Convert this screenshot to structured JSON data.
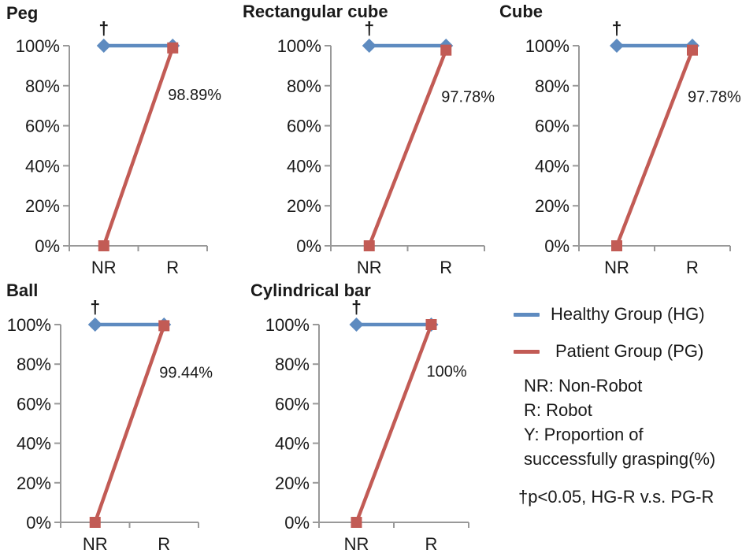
{
  "figure": {
    "colors": {
      "hg": "#5E8BC0",
      "pg": "#C25B55",
      "axis": "#999999",
      "text": "#1A1A1A"
    },
    "legend": {
      "hg_label": "Healthy Group (HG)",
      "pg_label": "Patient Group (PG)",
      "note_nr": "NR: Non-Robot",
      "note_r": "R: Robot",
      "note_y1": "Y: Proportion of",
      "note_y2": "successfully grasping(%)",
      "significance": "†p<0.05, HG-R v.s. PG-R"
    }
  },
  "chart_data": [
    {
      "type": "line",
      "title": "Peg",
      "categories": [
        "NR",
        "R"
      ],
      "yticks": [
        "0%",
        "20%",
        "40%",
        "60%",
        "80%",
        "100%"
      ],
      "ylim": [
        0,
        100
      ],
      "grid": false,
      "legend_position": "outside-right",
      "series": [
        {
          "name": "Healthy Group (HG)",
          "color_key": "hg",
          "marker": "diamond",
          "values": [
            100,
            100
          ]
        },
        {
          "name": "Patient Group (PG)",
          "color_key": "pg",
          "marker": "square",
          "values": [
            0,
            98.89
          ]
        }
      ],
      "annotation": "†",
      "data_label": "98.89%"
    },
    {
      "type": "line",
      "title": "Rectangular cube",
      "categories": [
        "NR",
        "R"
      ],
      "yticks": [
        "0%",
        "20%",
        "40%",
        "60%",
        "80%",
        "100%"
      ],
      "ylim": [
        0,
        100
      ],
      "grid": false,
      "legend_position": "outside-right",
      "series": [
        {
          "name": "Healthy Group (HG)",
          "color_key": "hg",
          "marker": "diamond",
          "values": [
            100,
            100
          ]
        },
        {
          "name": "Patient Group (PG)",
          "color_key": "pg",
          "marker": "square",
          "values": [
            0,
            97.78
          ]
        }
      ],
      "annotation": "†",
      "data_label": "97.78%"
    },
    {
      "type": "line",
      "title": "Cube",
      "categories": [
        "NR",
        "R"
      ],
      "yticks": [
        "0%",
        "20%",
        "40%",
        "60%",
        "80%",
        "100%"
      ],
      "ylim": [
        0,
        100
      ],
      "grid": false,
      "legend_position": "outside-right",
      "series": [
        {
          "name": "Healthy Group (HG)",
          "color_key": "hg",
          "marker": "diamond",
          "values": [
            100,
            100
          ]
        },
        {
          "name": "Patient Group (PG)",
          "color_key": "pg",
          "marker": "square",
          "values": [
            0,
            97.78
          ]
        }
      ],
      "annotation": "†",
      "data_label": "97.78%"
    },
    {
      "type": "line",
      "title": "Ball",
      "categories": [
        "NR",
        "R"
      ],
      "yticks": [
        "0%",
        "20%",
        "40%",
        "60%",
        "80%",
        "100%"
      ],
      "ylim": [
        0,
        100
      ],
      "grid": false,
      "legend_position": "outside-right",
      "series": [
        {
          "name": "Healthy Group (HG)",
          "color_key": "hg",
          "marker": "diamond",
          "values": [
            100,
            100
          ]
        },
        {
          "name": "Patient Group (PG)",
          "color_key": "pg",
          "marker": "square",
          "values": [
            0,
            99.44
          ]
        }
      ],
      "annotation": "†",
      "data_label": "99.44%"
    },
    {
      "type": "line",
      "title": "Cylindrical bar",
      "categories": [
        "NR",
        "R"
      ],
      "yticks": [
        "0%",
        "20%",
        "40%",
        "60%",
        "80%",
        "100%"
      ],
      "ylim": [
        0,
        100
      ],
      "grid": false,
      "legend_position": "outside-right",
      "series": [
        {
          "name": "Healthy Group (HG)",
          "color_key": "hg",
          "marker": "diamond",
          "values": [
            100,
            100
          ]
        },
        {
          "name": "Patient Group (PG)",
          "color_key": "pg",
          "marker": "square",
          "values": [
            0,
            100
          ]
        }
      ],
      "annotation": "†",
      "data_label": "100%"
    }
  ]
}
